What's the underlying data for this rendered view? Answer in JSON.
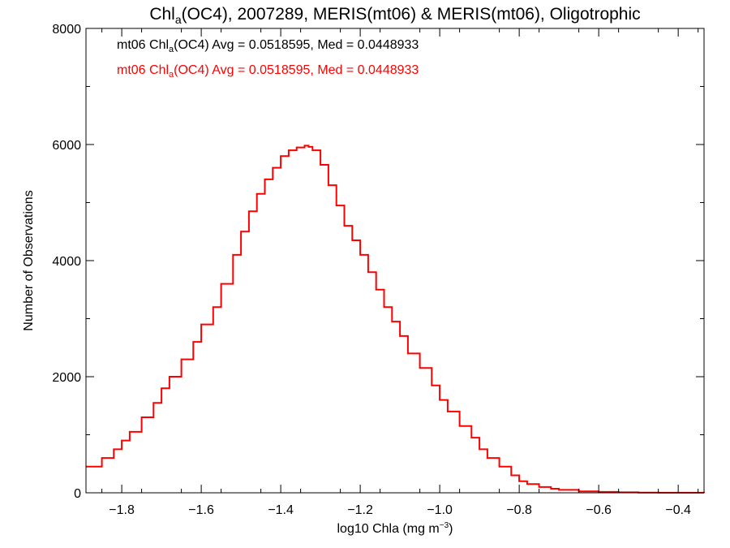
{
  "chart_data": {
    "type": "line",
    "title": {
      "main": "Chl",
      "sub": "a",
      "rest": "(OC4), 2007289, MERIS(mt06) & MERIS(mt06), Oligotrophic"
    },
    "xlabel": {
      "main": "log10 Chla (mg m",
      "sup": "−3",
      "close": ")"
    },
    "ylabel": "Number of Observations",
    "xlim": [
      -1.89,
      -0.335
    ],
    "ylim": [
      0,
      8000
    ],
    "x_ticks": [
      -1.8,
      -1.6,
      -1.4,
      -1.2,
      -1.0,
      -0.8,
      -0.6,
      -0.4
    ],
    "x_tick_labels": [
      "−1.8",
      "−1.6",
      "−1.4",
      "−1.2",
      "−1.0",
      "−0.8",
      "−0.6",
      "−0.4"
    ],
    "y_ticks": [
      0,
      2000,
      4000,
      6000,
      8000
    ],
    "y_tick_labels": [
      "0",
      "2000",
      "4000",
      "6000",
      "8000"
    ],
    "legend": {
      "placement": "top-left",
      "entries": [
        {
          "prefix": "mt06 Chl",
          "sub": "a",
          "rest": "(OC4) Avg = 0.0518595, Med = 0.0448933",
          "color": "#000000"
        },
        {
          "prefix": "mt06 Chl",
          "sub": "a",
          "rest": "(OC4) Avg = 0.0518595, Med = 0.0448933",
          "color": "#ff0000"
        }
      ]
    },
    "series": [
      {
        "color": "#ff0000",
        "style": "step",
        "x": [
          -1.89,
          -1.85,
          -1.82,
          -1.8,
          -1.78,
          -1.75,
          -1.72,
          -1.7,
          -1.68,
          -1.65,
          -1.62,
          -1.6,
          -1.57,
          -1.55,
          -1.52,
          -1.5,
          -1.48,
          -1.46,
          -1.44,
          -1.42,
          -1.4,
          -1.38,
          -1.36,
          -1.34,
          -1.33,
          -1.32,
          -1.3,
          -1.28,
          -1.26,
          -1.24,
          -1.22,
          -1.2,
          -1.18,
          -1.16,
          -1.14,
          -1.12,
          -1.1,
          -1.08,
          -1.05,
          -1.02,
          -1.0,
          -0.98,
          -0.95,
          -0.92,
          -0.9,
          -0.88,
          -0.85,
          -0.82,
          -0.8,
          -0.78,
          -0.75,
          -0.72,
          -0.7,
          -0.65,
          -0.6,
          -0.55,
          -0.5,
          -0.45,
          -0.4,
          -0.335
        ],
        "y": [
          450,
          600,
          750,
          900,
          1050,
          1300,
          1550,
          1800,
          2000,
          2300,
          2600,
          2900,
          3200,
          3600,
          4100,
          4500,
          4850,
          5150,
          5400,
          5600,
          5800,
          5900,
          5950,
          5980,
          5960,
          5900,
          5650,
          5300,
          4950,
          4600,
          4350,
          4100,
          3800,
          3500,
          3200,
          2950,
          2700,
          2400,
          2150,
          1850,
          1600,
          1400,
          1150,
          950,
          750,
          600,
          450,
          300,
          200,
          150,
          100,
          70,
          50,
          25,
          15,
          8,
          4,
          2,
          1,
          0
        ]
      }
    ]
  }
}
